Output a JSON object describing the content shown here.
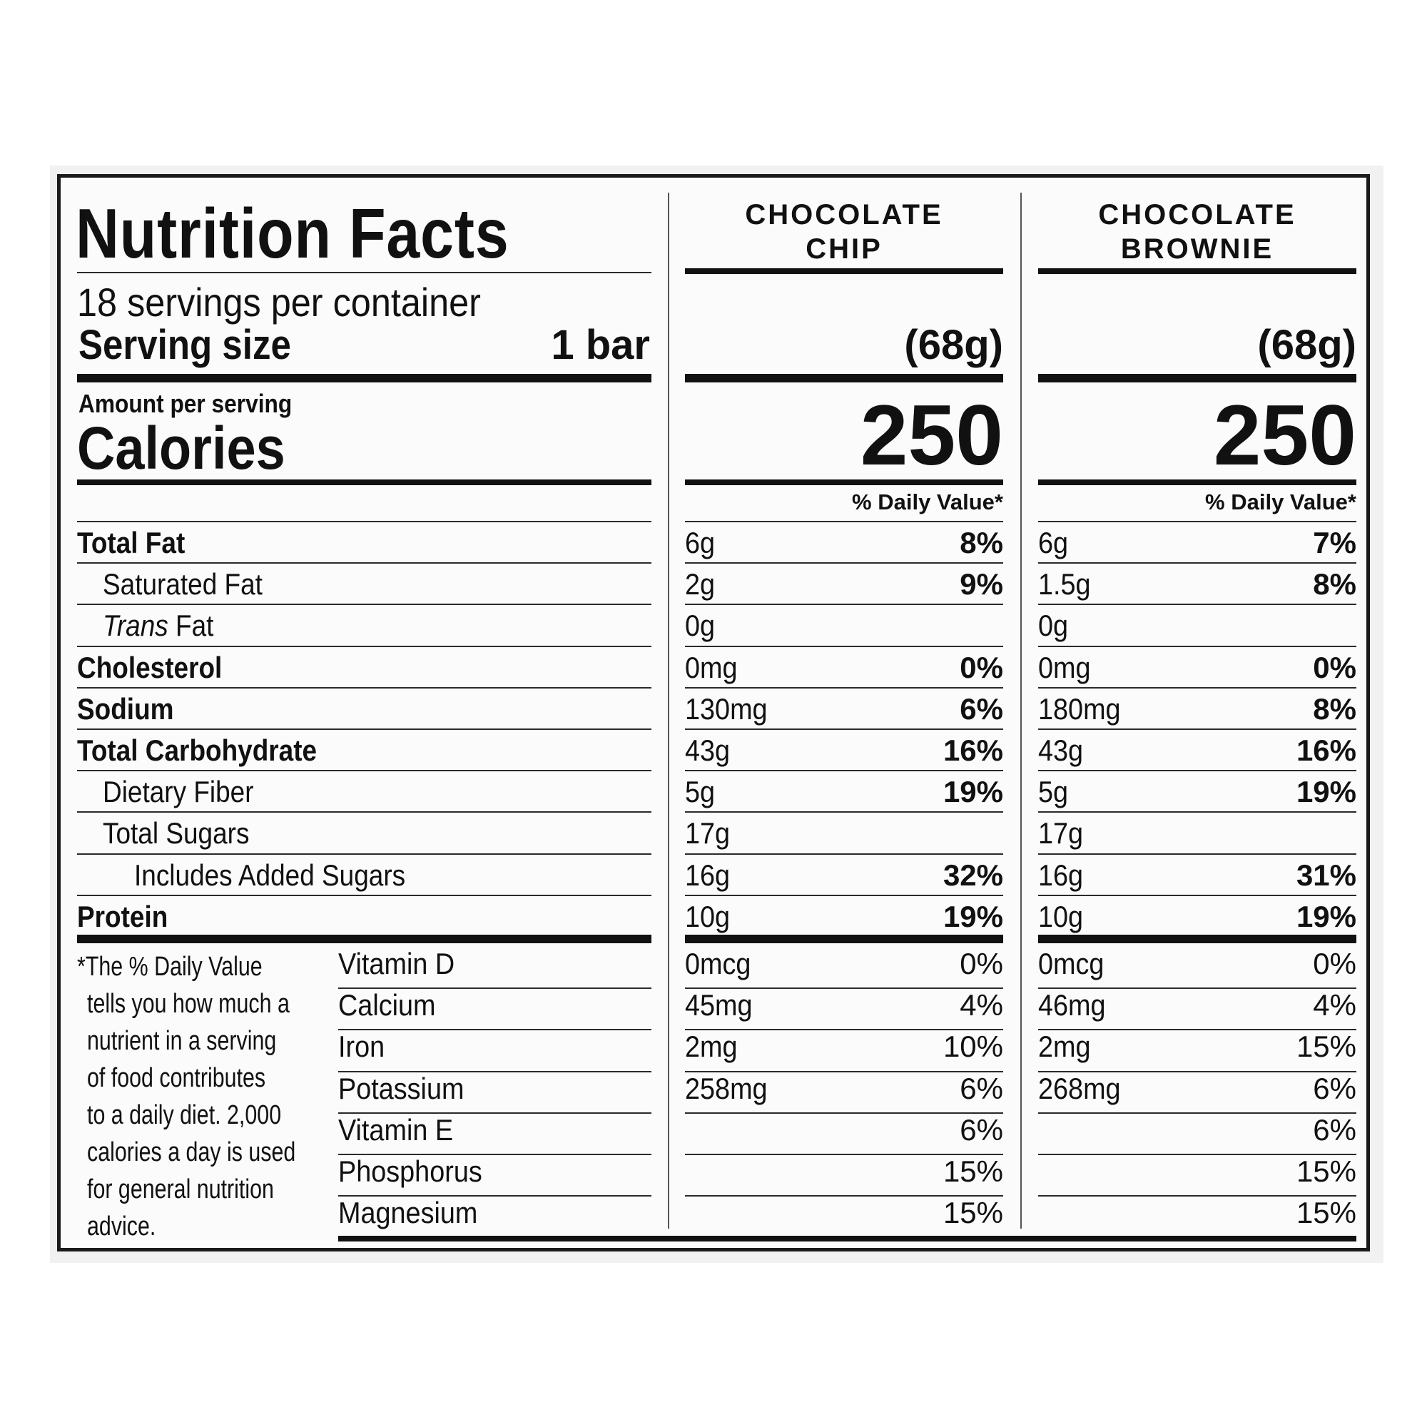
{
  "title": "Nutrition Facts",
  "servings_per_container": "18 servings per container",
  "serving_size_label": "Serving size",
  "serving_size_value": "1 bar",
  "amount_per_serving": "Amount per serving",
  "calories_label": "Calories",
  "daily_value_header": "% Daily Value*",
  "products": [
    {
      "name_line1": "CHOCOLATE",
      "name_line2": "CHIP",
      "serving_weight": "(68g)",
      "calories": "250",
      "nutrients": [
        {
          "amount": "6g",
          "dv": "8%"
        },
        {
          "amount": "2g",
          "dv": "9%"
        },
        {
          "amount": "0g",
          "dv": ""
        },
        {
          "amount": "0mg",
          "dv": "0%"
        },
        {
          "amount": "130mg",
          "dv": "6%"
        },
        {
          "amount": "43g",
          "dv": "16%"
        },
        {
          "amount": "5g",
          "dv": "19%"
        },
        {
          "amount": "17g",
          "dv": ""
        },
        {
          "amount": "16g",
          "dv": "32%"
        },
        {
          "amount": "10g",
          "dv": "19%"
        }
      ],
      "vitamins": [
        {
          "amount": "0mcg",
          "dv": "0%"
        },
        {
          "amount": "45mg",
          "dv": "4%"
        },
        {
          "amount": "2mg",
          "dv": "10%"
        },
        {
          "amount": "258mg",
          "dv": "6%"
        },
        {
          "amount": "",
          "dv": "6%"
        },
        {
          "amount": "",
          "dv": "15%"
        },
        {
          "amount": "",
          "dv": "15%"
        }
      ]
    },
    {
      "name_line1": "CHOCOLATE",
      "name_line2": "BROWNIE",
      "serving_weight": "(68g)",
      "calories": "250",
      "nutrients": [
        {
          "amount": "6g",
          "dv": "7%"
        },
        {
          "amount": "1.5g",
          "dv": "8%"
        },
        {
          "amount": "0g",
          "dv": ""
        },
        {
          "amount": "0mg",
          "dv": "0%"
        },
        {
          "amount": "180mg",
          "dv": "8%"
        },
        {
          "amount": "43g",
          "dv": "16%"
        },
        {
          "amount": "5g",
          "dv": "19%"
        },
        {
          "amount": "17g",
          "dv": ""
        },
        {
          "amount": "16g",
          "dv": "31%"
        },
        {
          "amount": "10g",
          "dv": "19%"
        }
      ],
      "vitamins": [
        {
          "amount": "0mcg",
          "dv": "0%"
        },
        {
          "amount": "46mg",
          "dv": "4%"
        },
        {
          "amount": "2mg",
          "dv": "15%"
        },
        {
          "amount": "268mg",
          "dv": "6%"
        },
        {
          "amount": "",
          "dv": "6%"
        },
        {
          "amount": "",
          "dv": "15%"
        },
        {
          "amount": "",
          "dv": "15%"
        }
      ]
    }
  ],
  "nutrient_labels": [
    {
      "label": "Total Fat",
      "bold": true,
      "indent": 0
    },
    {
      "label": "Saturated Fat",
      "bold": false,
      "indent": 1
    },
    {
      "label": "Trans",
      "suffix": " Fat",
      "bold": false,
      "indent": 1,
      "italic_prefix": true
    },
    {
      "label": "Cholesterol",
      "bold": true,
      "indent": 0
    },
    {
      "label": "Sodium",
      "bold": true,
      "indent": 0
    },
    {
      "label": "Total Carbohydrate",
      "bold": true,
      "indent": 0
    },
    {
      "label": "Dietary Fiber",
      "bold": false,
      "indent": 1
    },
    {
      "label": "Total Sugars",
      "bold": false,
      "indent": 1
    },
    {
      "label": "Includes Added Sugars",
      "bold": false,
      "indent": 2
    },
    {
      "label": "Protein",
      "bold": true,
      "indent": 0
    }
  ],
  "vitamin_labels": [
    "Vitamin D",
    "Calcium",
    "Iron",
    "Potassium",
    "Vitamin E",
    "Phosphorus",
    "Magnesium"
  ],
  "footnote_lines": [
    "*The % Daily Value",
    "tells you how much a",
    "nutrient in a serving",
    "of food contributes",
    "to a daily diet. 2,000",
    "calories a day is used",
    "for general nutrition",
    "advice."
  ]
}
